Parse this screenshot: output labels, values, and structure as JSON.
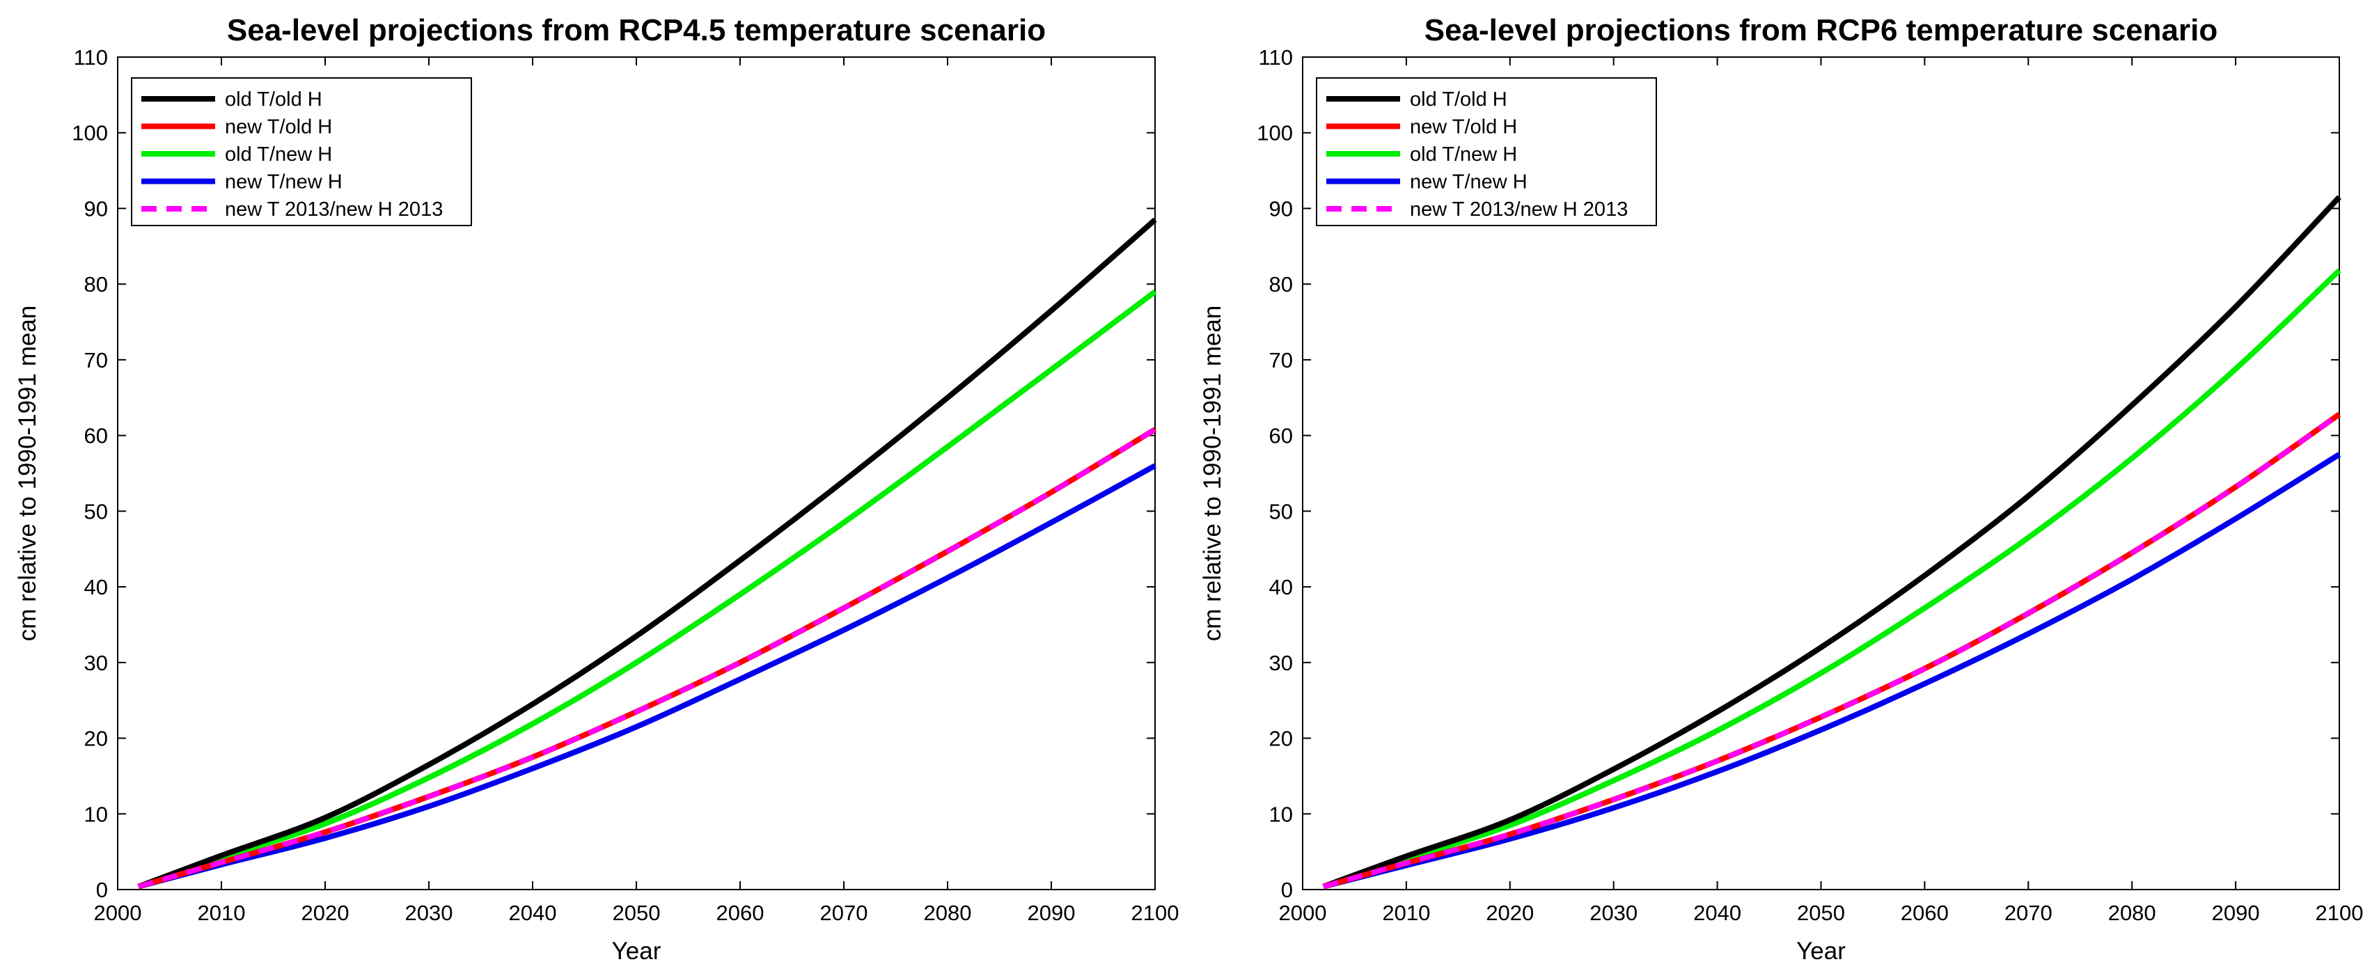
{
  "chart_data": [
    {
      "type": "line",
      "title": "Sea-level projections from RCP4.5 temperature scenario",
      "xlabel": "Year",
      "ylabel": "cm relative to 1990-1991 mean",
      "xlim": [
        2000,
        2100
      ],
      "ylim": [
        0,
        110
      ],
      "xticks": [
        2000,
        2010,
        2020,
        2030,
        2040,
        2050,
        2060,
        2070,
        2080,
        2090,
        2100
      ],
      "yticks": [
        0,
        10,
        20,
        30,
        40,
        50,
        60,
        70,
        80,
        90,
        100,
        110
      ],
      "legend_position": "top-left",
      "x": [
        2002,
        2010,
        2020,
        2030,
        2040,
        2050,
        2060,
        2070,
        2080,
        2090,
        2100
      ],
      "series": [
        {
          "name": "old T/old H",
          "color": "#000000",
          "dash": "solid",
          "values": [
            0.4,
            4.5,
            9.5,
            16.5,
            24.5,
            33.5,
            43.5,
            54.0,
            65.0,
            76.5,
            88.5
          ]
        },
        {
          "name": "new T/old H",
          "color": "#ff0000",
          "dash": "solid",
          "values": [
            0.4,
            3.6,
            7.6,
            12.3,
            17.5,
            23.5,
            30.0,
            37.2,
            44.7,
            52.5,
            60.8
          ]
        },
        {
          "name": "old T/new H",
          "color": "#00ee00",
          "dash": "solid",
          "values": [
            0.4,
            4.2,
            8.7,
            14.8,
            21.9,
            30.0,
            39.0,
            48.5,
            58.5,
            68.7,
            79.0
          ]
        },
        {
          "name": "new T/new H",
          "color": "#0000ee",
          "dash": "solid",
          "values": [
            0.4,
            3.3,
            6.8,
            11.0,
            16.0,
            21.5,
            27.8,
            34.3,
            41.2,
            48.5,
            56.0
          ]
        },
        {
          "name": "new T 2013/new H 2013",
          "color": "#ff00ff",
          "dash": "dashed",
          "values": [
            0.4,
            3.6,
            7.6,
            12.3,
            17.5,
            23.5,
            30.0,
            37.2,
            44.7,
            52.5,
            60.8
          ]
        }
      ]
    },
    {
      "type": "line",
      "title": "Sea-level projections from RCP6 temperature scenario",
      "xlabel": "Year",
      "ylabel": "cm relative to 1990-1991 mean",
      "xlim": [
        2000,
        2100
      ],
      "ylim": [
        0,
        110
      ],
      "xticks": [
        2000,
        2010,
        2020,
        2030,
        2040,
        2050,
        2060,
        2070,
        2080,
        2090,
        2100
      ],
      "yticks": [
        0,
        10,
        20,
        30,
        40,
        50,
        60,
        70,
        80,
        90,
        100,
        110
      ],
      "legend_position": "top-left",
      "x": [
        2002,
        2010,
        2020,
        2030,
        2040,
        2050,
        2060,
        2070,
        2080,
        2090,
        2100
      ],
      "series": [
        {
          "name": "old T/old H",
          "color": "#000000",
          "dash": "solid",
          "values": [
            0.4,
            4.4,
            9.2,
            15.9,
            23.5,
            32.0,
            41.5,
            52.0,
            64.0,
            77.0,
            91.5
          ]
        },
        {
          "name": "new T/old H",
          "color": "#ff0000",
          "dash": "solid",
          "values": [
            0.4,
            3.5,
            7.3,
            11.9,
            17.0,
            22.8,
            29.2,
            36.5,
            44.5,
            53.2,
            62.8
          ]
        },
        {
          "name": "old T/new H",
          "color": "#00ee00",
          "dash": "solid",
          "values": [
            0.4,
            4.0,
            8.5,
            14.4,
            21.0,
            28.6,
            37.2,
            46.5,
            57.0,
            68.8,
            81.8
          ]
        },
        {
          "name": "new T/new H",
          "color": "#0000ee",
          "dash": "solid",
          "values": [
            0.4,
            3.2,
            6.7,
            10.8,
            15.6,
            21.1,
            27.2,
            33.8,
            41.0,
            49.0,
            57.5
          ]
        },
        {
          "name": "new T 2013/new H 2013",
          "color": "#ff00ff",
          "dash": "dashed",
          "values": [
            0.4,
            3.5,
            7.3,
            11.9,
            17.0,
            22.8,
            29.2,
            36.5,
            44.5,
            53.2,
            62.8
          ]
        }
      ]
    }
  ]
}
